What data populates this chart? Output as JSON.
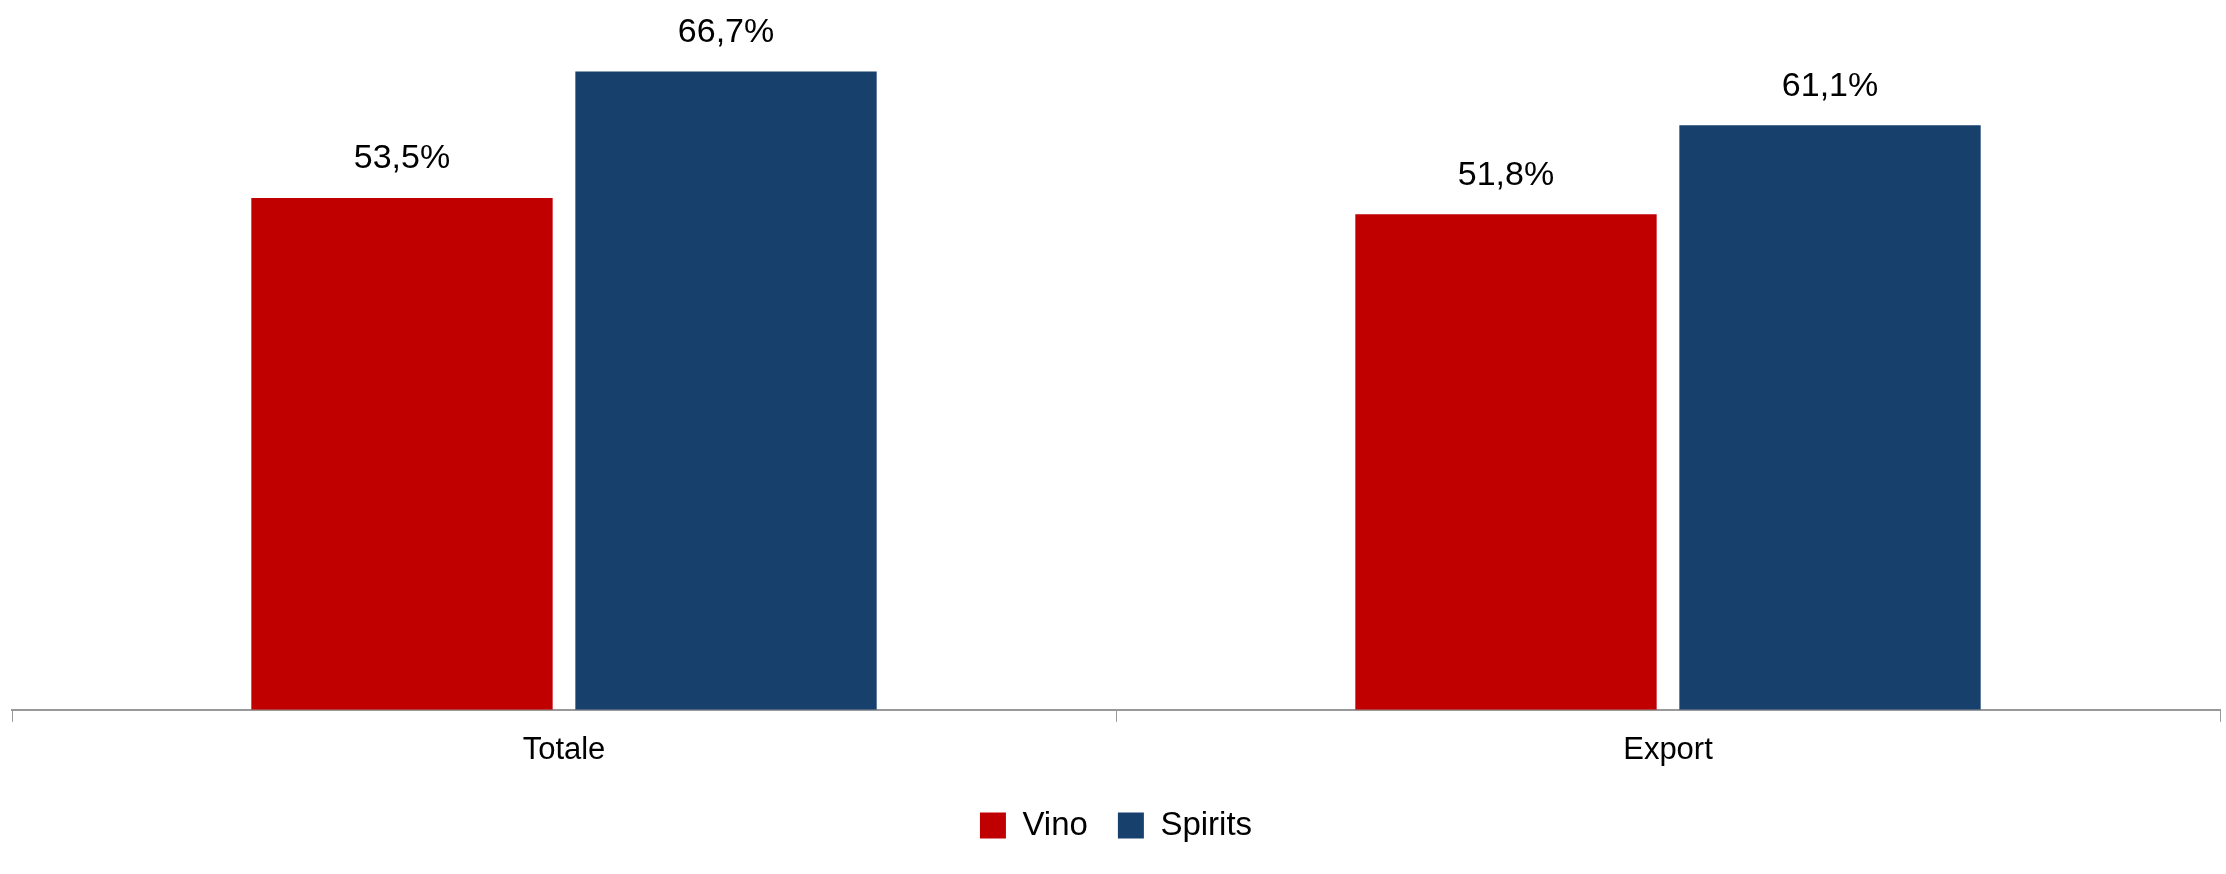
{
  "chart_data": {
    "type": "bar",
    "categories": [
      "Totale",
      "Export"
    ],
    "series": [
      {
        "name": "Vino",
        "color": "#c00000",
        "values": [
          53.5,
          51.8
        ],
        "value_labels": [
          "53,5%",
          "51,8%"
        ]
      },
      {
        "name": "Spirits",
        "color": "#17406d",
        "values": [
          66.7,
          61.1
        ],
        "value_labels": [
          "66,7%",
          "61,1%"
        ]
      }
    ],
    "tick_labels": "x",
    "legend": "bottom"
  }
}
